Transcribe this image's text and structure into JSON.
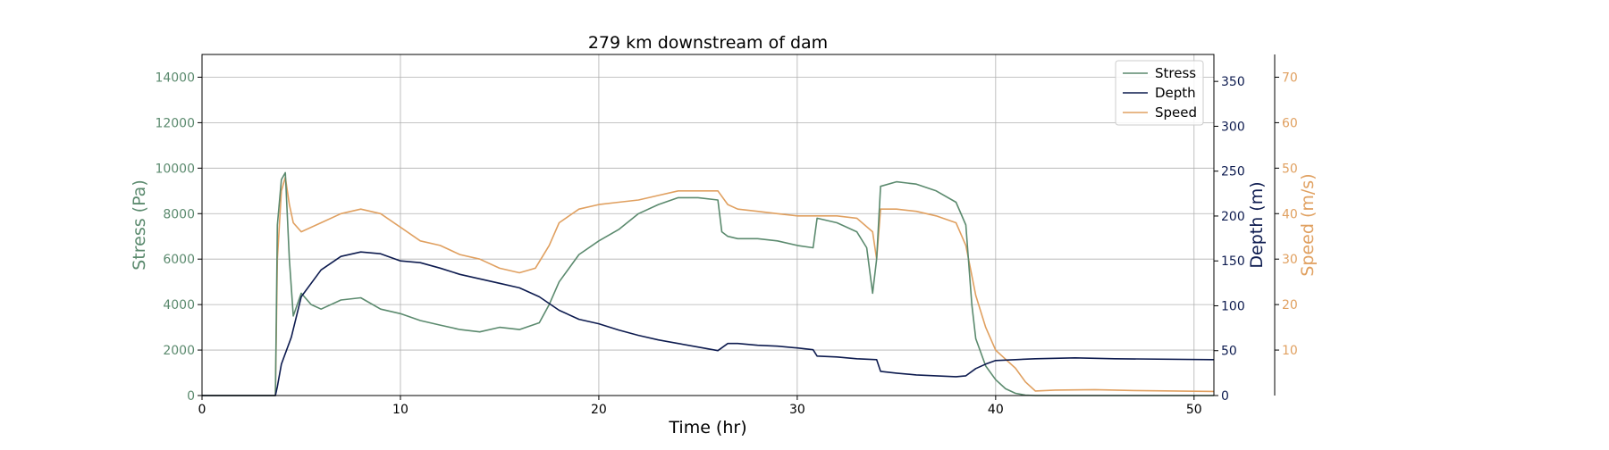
{
  "chart_data": {
    "type": "line",
    "title": "279 km downstream of dam",
    "xlabel": "Time (hr)",
    "xlim": [
      0,
      51
    ],
    "xticks": [
      0,
      10,
      20,
      30,
      40,
      50
    ],
    "grid": true,
    "legend_position": "top-right",
    "axes": {
      "stress": {
        "label": "Stress (Pa)",
        "lim": [
          0,
          15000
        ],
        "ticks": [
          0,
          2000,
          4000,
          6000,
          8000,
          10000,
          12000,
          14000
        ],
        "color": "#5b8a6e",
        "side": "left"
      },
      "depth": {
        "label": "Depth (m)",
        "lim": [
          0,
          380
        ],
        "ticks": [
          0,
          50,
          100,
          150,
          200,
          250,
          300,
          350
        ],
        "color": "#0d1b4f",
        "side": "right"
      },
      "speed": {
        "label": "Speed (m/s)",
        "lim": [
          0,
          75
        ],
        "ticks": [
          10,
          20,
          30,
          40,
          50,
          60,
          70
        ],
        "color": "#e0a060",
        "side": "right-offset"
      }
    },
    "series": [
      {
        "name": "Stress",
        "axis": "stress",
        "color": "#5b8a6e",
        "x": [
          0,
          3.7,
          3.8,
          4.0,
          4.2,
          4.4,
          4.6,
          5.0,
          5.5,
          6,
          7,
          8,
          9,
          10,
          11,
          12,
          13,
          14,
          15,
          16,
          17,
          17.5,
          18,
          19,
          20,
          21,
          22,
          23,
          24,
          25,
          26,
          26.2,
          26.5,
          27,
          28,
          29,
          30,
          30.8,
          31,
          32,
          33,
          33.5,
          33.8,
          34.0,
          34.2,
          35,
          36,
          37,
          38,
          38.5,
          38.8,
          39,
          39.5,
          40,
          40.5,
          41,
          41.5,
          42,
          45,
          51
        ],
        "y": [
          0,
          0,
          7500,
          9500,
          9800,
          6000,
          3500,
          4500,
          4000,
          3800,
          4200,
          4300,
          3800,
          3600,
          3300,
          3100,
          2900,
          2800,
          3000,
          2900,
          3200,
          4000,
          5000,
          6200,
          6800,
          7300,
          8000,
          8400,
          8700,
          8700,
          8600,
          7200,
          7000,
          6900,
          6900,
          6800,
          6600,
          6500,
          7800,
          7600,
          7200,
          6500,
          4500,
          6000,
          9200,
          9400,
          9300,
          9000,
          8500,
          7500,
          4000,
          2500,
          1300,
          700,
          300,
          100,
          20,
          0,
          0,
          0
        ]
      },
      {
        "name": "Depth",
        "axis": "depth",
        "color": "#0d1b4f",
        "x": [
          0,
          3.7,
          3.8,
          4.0,
          4.5,
          5,
          6,
          7,
          8,
          9,
          10,
          11,
          12,
          13,
          14,
          15,
          16,
          17,
          18,
          19,
          20,
          21,
          22,
          23,
          24,
          25,
          26,
          26.5,
          27,
          28,
          29,
          30,
          30.8,
          31,
          32,
          33,
          34,
          34.2,
          35,
          36,
          37,
          38,
          38.5,
          39,
          39.5,
          40,
          41,
          42,
          44,
          46,
          51
        ],
        "y": [
          0,
          0,
          10,
          35,
          65,
          110,
          140,
          155,
          160,
          158,
          150,
          148,
          142,
          135,
          130,
          125,
          120,
          110,
          95,
          85,
          80,
          73,
          67,
          62,
          58,
          54,
          50,
          58,
          58,
          56,
          55,
          53,
          51,
          44,
          43,
          41,
          40,
          27,
          25,
          23,
          22,
          21,
          22,
          30,
          35,
          39,
          40,
          41,
          42,
          41,
          40
        ]
      },
      {
        "name": "Speed",
        "axis": "speed",
        "color": "#e0a060",
        "x": [
          0,
          3.7,
          3.8,
          4.0,
          4.2,
          4.4,
          4.6,
          5,
          6,
          7,
          8,
          9,
          10,
          11,
          12,
          13,
          14,
          15,
          16,
          16.8,
          17.5,
          18,
          19,
          20,
          21,
          22,
          23,
          24,
          25,
          26,
          26.5,
          27,
          28,
          29,
          30,
          31,
          32,
          33,
          33.8,
          34.0,
          34.2,
          35,
          36,
          37,
          38,
          38.5,
          39,
          39.5,
          40,
          40.5,
          41,
          41.5,
          42,
          43,
          45,
          47,
          51
        ],
        "y": [
          0,
          0,
          30,
          45,
          48,
          42,
          38,
          36,
          38,
          40,
          41,
          40,
          37,
          34,
          33,
          31,
          30,
          28,
          27,
          28,
          33,
          38,
          41,
          42,
          42.5,
          43,
          44,
          45,
          45,
          45,
          42,
          41,
          40.5,
          40,
          39.5,
          39.5,
          39.5,
          39,
          36,
          30,
          41,
          41,
          40.5,
          39.5,
          38,
          33,
          22,
          15,
          10,
          8,
          6,
          3,
          1,
          1.2,
          1.3,
          1.1,
          0.9
        ]
      }
    ]
  }
}
